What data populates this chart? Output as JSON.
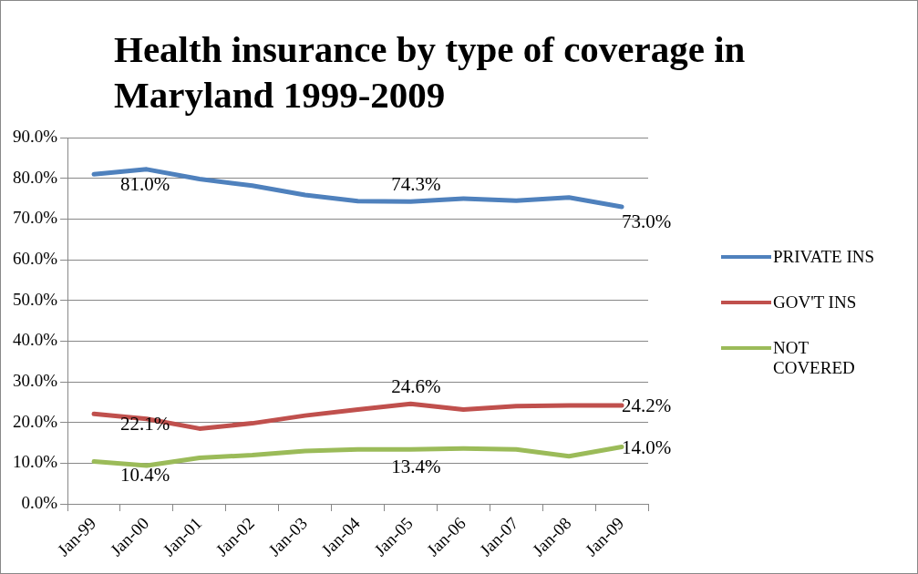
{
  "chart_data": {
    "type": "line",
    "title": "Health insurance by type of coverage in Maryland 1999-2009",
    "categories": [
      "Jan-99",
      "Jan-00",
      "Jan-01",
      "Jan-02",
      "Jan-03",
      "Jan-04",
      "Jan-05",
      "Jan-06",
      "Jan-07",
      "Jan-08",
      "Jan-09"
    ],
    "series": [
      {
        "name": "PRIVATE INS",
        "color": "#4f81bd",
        "values": [
          81.0,
          82.2,
          79.8,
          78.2,
          75.9,
          74.4,
          74.3,
          75.0,
          74.5,
          75.3,
          73.0
        ],
        "value_labels": [
          "81.0%",
          null,
          null,
          null,
          null,
          null,
          "74.3%",
          null,
          null,
          null,
          "73.0%"
        ]
      },
      {
        "name": "GOV'T INS",
        "color": "#c0504d",
        "values": [
          22.1,
          20.9,
          18.5,
          19.8,
          21.7,
          23.2,
          24.6,
          23.2,
          24.0,
          24.2,
          24.2
        ],
        "value_labels": [
          "22.1%",
          null,
          null,
          null,
          null,
          null,
          "24.6%",
          null,
          null,
          null,
          "24.2%"
        ]
      },
      {
        "name": "NOT COVERED",
        "color": "#9bbb59",
        "values": [
          10.4,
          9.4,
          11.3,
          12.0,
          13.0,
          13.4,
          13.4,
          13.6,
          13.4,
          11.7,
          14.0
        ],
        "value_labels": [
          "10.4%",
          null,
          null,
          null,
          null,
          null,
          "13.4%",
          null,
          null,
          null,
          "14.0%"
        ]
      }
    ],
    "ylim": [
      0,
      90
    ],
    "yticks": [
      {
        "value": 0,
        "label": "0.0%"
      },
      {
        "value": 10,
        "label": "10.0%"
      },
      {
        "value": 20,
        "label": "20.0%"
      },
      {
        "value": 30,
        "label": "30.0%"
      },
      {
        "value": 40,
        "label": "40.0%"
      },
      {
        "value": 50,
        "label": "50.0%"
      },
      {
        "value": 60,
        "label": "60.0%"
      },
      {
        "value": 70,
        "label": "70.0%"
      },
      {
        "value": 80,
        "label": "80.0%"
      },
      {
        "value": 90,
        "label": "90.0%"
      }
    ],
    "grid": "y",
    "legend": "right",
    "marker": "none",
    "line_style": "solid"
  }
}
